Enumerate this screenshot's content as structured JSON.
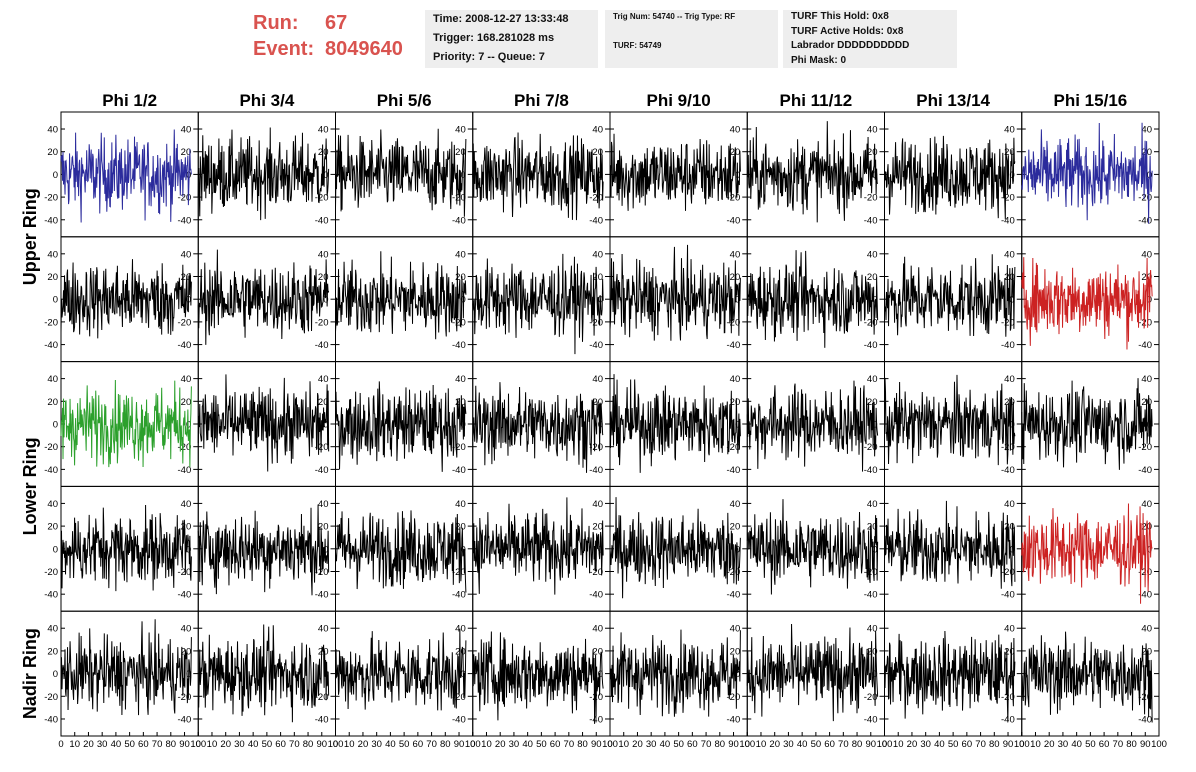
{
  "header": {
    "run_label": "Run:",
    "run_value": "67",
    "event_label": "Event:",
    "event_value": "8049640",
    "info_box_1": [
      "Time: 2008-12-27 13:33:48",
      "Trigger: 168.281028 ms",
      "Priority: 7 -- Queue: 7"
    ],
    "info_box_2": [
      "Trig Num: 54740 -- Trig Type: RF",
      "TURF: 54749"
    ],
    "info_box_3": [
      "TURF This Hold: 0x8",
      "TURF Active Holds: 0x8",
      "Labrador DDDDDDDDDD",
      "Phi Mask: 0"
    ]
  },
  "colors": {
    "default_trace": "#000000",
    "blue_trace": "#2b2b9c",
    "red_trace": "#cc2222",
    "green_trace": "#2ca02c",
    "run_event_text": "#d9534f",
    "info_box_bg": "#eeeeee"
  },
  "chart_data": {
    "type": "line",
    "columns": [
      "Phi 1/2",
      "Phi 3/4",
      "Phi 5/6",
      "Phi 7/8",
      "Phi 9/10",
      "Phi 11/12",
      "Phi 13/14",
      "Phi 15/16"
    ],
    "ring_labels": [
      {
        "text": "Upper Ring",
        "rows": [
          0,
          1
        ]
      },
      {
        "text": "Lower Ring",
        "rows": [
          2,
          3
        ]
      },
      {
        "text": "Nadir Ring",
        "rows": [
          4
        ]
      }
    ],
    "x_range": [
      0,
      100
    ],
    "y_range": [
      -55,
      55
    ],
    "y_ticks": [
      -40,
      -20,
      0,
      20,
      40
    ],
    "x_ticks": [
      0,
      10,
      20,
      30,
      40,
      50,
      60,
      70,
      80,
      90,
      100
    ],
    "grid": false,
    "traces": [
      [
        "blue",
        "black",
        "black",
        "black",
        "black",
        "black",
        "black",
        "blue"
      ],
      [
        "black",
        "black",
        "black",
        "black",
        "black",
        "black",
        "black",
        "red"
      ],
      [
        "green",
        "black",
        "black",
        "black",
        "black",
        "black",
        "black",
        "black"
      ],
      [
        "black",
        "black",
        "black",
        "black",
        "black",
        "black",
        "black",
        "red"
      ],
      [
        "black",
        "black",
        "black",
        "black",
        "black",
        "black",
        "black",
        "black"
      ]
    ],
    "trace_samples": 260,
    "trace_x_max": 95,
    "trace_amplitude": 16
  }
}
